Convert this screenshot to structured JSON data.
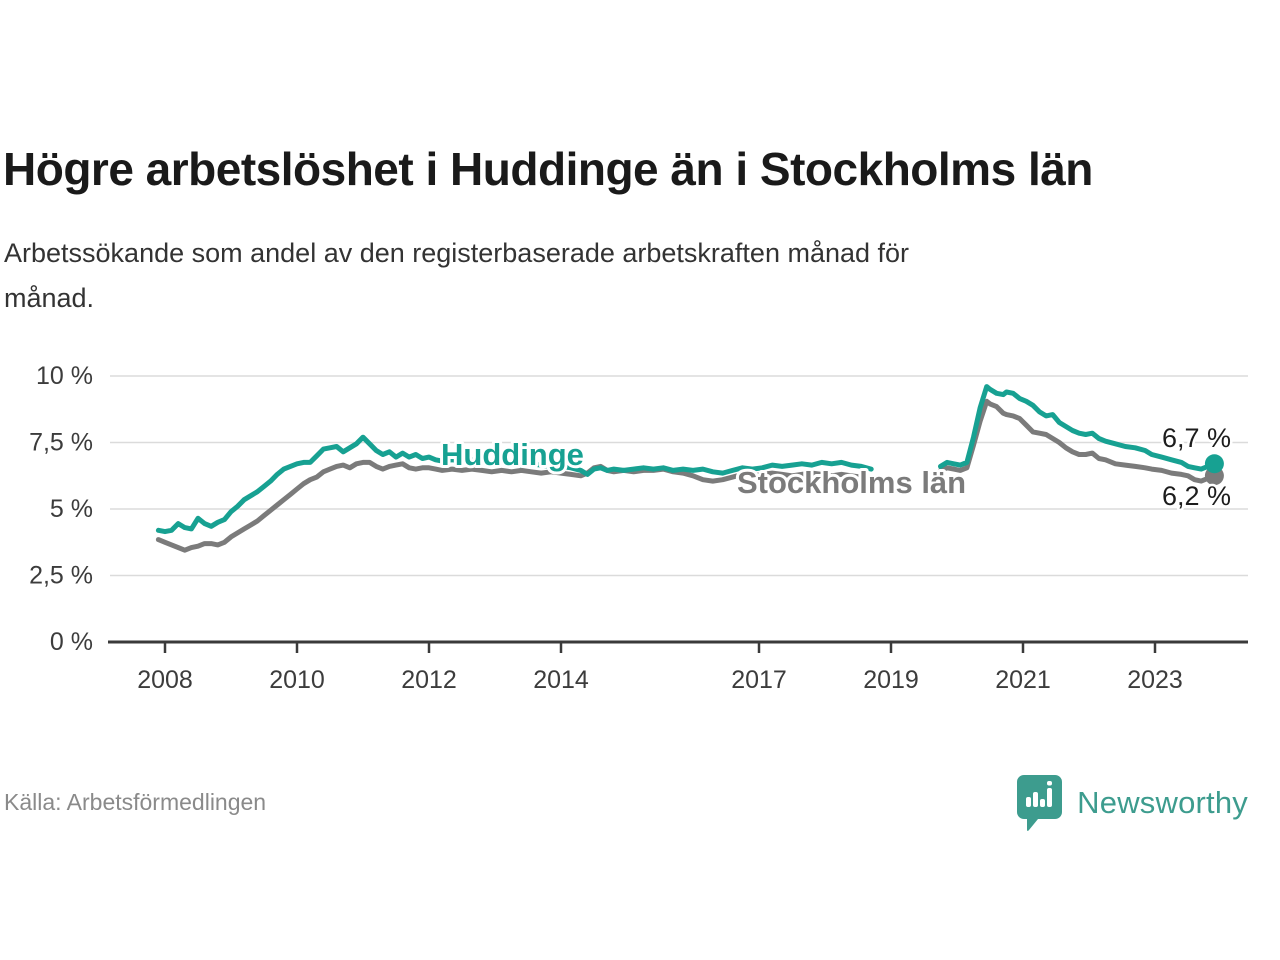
{
  "page": {
    "title": "Högre arbetslöshet i Huddinge än i Stockholms län",
    "subtitle_lines": [
      "Arbetssökande som andel av den registerbaserade arbetskraften månad för",
      "månad."
    ],
    "source": "Källa: Arbetsförmedlingen",
    "brand": "Newsworthy"
  },
  "chart_data": {
    "type": "line",
    "title": "Högre arbetslöshet i Huddinge än i Stockholms län",
    "subtitle": "Arbetssökande som andel av den registerbaserade arbetskraften månad för månad.",
    "unit": "%",
    "xlim": [
      2007.5,
      2024.5
    ],
    "ylim": [
      0,
      10
    ],
    "grid": true,
    "legend_position": "inline-labels",
    "x_ticks": [
      2008,
      2010,
      2012,
      2014,
      2017,
      2019,
      2021,
      2023
    ],
    "x_tick_labels": [
      "2008",
      "2010",
      "2012",
      "2014",
      "2017",
      "2019",
      "2021",
      "2023"
    ],
    "y_ticks": [
      0,
      2.5,
      5,
      7.5,
      10
    ],
    "y_tick_labels": [
      "0 %",
      "2,5 %",
      "5 %",
      "7,5 %",
      "10 %"
    ],
    "data_gap_years": [
      2018.8,
      2019.6
    ],
    "colors": {
      "huddinge": "#17a192",
      "stockholms_lan": "#7b7b7b",
      "grid": "#dbdbdb",
      "axis": "#3a3a3a",
      "tick_text": "#3c3c3c",
      "end_label_text": "#1d1d1d"
    },
    "series": [
      {
        "name": "Stockholms län",
        "color": "#7b7b7b",
        "end_label": "6,2 %",
        "end_value": 6.2,
        "points": [
          [
            2007.9,
            3.85
          ],
          [
            2008.0,
            3.75
          ],
          [
            2008.1,
            3.65
          ],
          [
            2008.2,
            3.55
          ],
          [
            2008.3,
            3.45
          ],
          [
            2008.4,
            3.55
          ],
          [
            2008.5,
            3.6
          ],
          [
            2008.6,
            3.7
          ],
          [
            2008.7,
            3.7
          ],
          [
            2008.8,
            3.65
          ],
          [
            2008.9,
            3.75
          ],
          [
            2009.0,
            3.95
          ],
          [
            2009.1,
            4.1
          ],
          [
            2009.2,
            4.25
          ],
          [
            2009.3,
            4.4
          ],
          [
            2009.4,
            4.55
          ],
          [
            2009.5,
            4.75
          ],
          [
            2009.6,
            4.95
          ],
          [
            2009.7,
            5.15
          ],
          [
            2009.8,
            5.35
          ],
          [
            2009.9,
            5.55
          ],
          [
            2010.0,
            5.75
          ],
          [
            2010.1,
            5.95
          ],
          [
            2010.2,
            6.1
          ],
          [
            2010.3,
            6.2
          ],
          [
            2010.4,
            6.4
          ],
          [
            2010.5,
            6.5
          ],
          [
            2010.6,
            6.6
          ],
          [
            2010.7,
            6.65
          ],
          [
            2010.8,
            6.55
          ],
          [
            2010.9,
            6.7
          ],
          [
            2011.0,
            6.75
          ],
          [
            2011.1,
            6.75
          ],
          [
            2011.2,
            6.6
          ],
          [
            2011.3,
            6.5
          ],
          [
            2011.4,
            6.6
          ],
          [
            2011.5,
            6.65
          ],
          [
            2011.6,
            6.7
          ],
          [
            2011.7,
            6.55
          ],
          [
            2011.8,
            6.5
          ],
          [
            2011.9,
            6.55
          ],
          [
            2012.0,
            6.55
          ],
          [
            2012.1,
            6.5
          ],
          [
            2012.2,
            6.45
          ],
          [
            2012.35,
            6.5
          ],
          [
            2012.5,
            6.45
          ],
          [
            2012.65,
            6.5
          ],
          [
            2012.8,
            6.45
          ],
          [
            2012.95,
            6.4
          ],
          [
            2013.1,
            6.45
          ],
          [
            2013.25,
            6.4
          ],
          [
            2013.4,
            6.45
          ],
          [
            2013.55,
            6.4
          ],
          [
            2013.7,
            6.35
          ],
          [
            2013.85,
            6.4
          ],
          [
            2014.0,
            6.35
          ],
          [
            2014.15,
            6.3
          ],
          [
            2014.3,
            6.25
          ],
          [
            2014.4,
            6.35
          ],
          [
            2014.5,
            6.55
          ],
          [
            2014.6,
            6.6
          ],
          [
            2014.7,
            6.45
          ],
          [
            2014.8,
            6.4
          ],
          [
            2014.95,
            6.45
          ],
          [
            2015.1,
            6.4
          ],
          [
            2015.25,
            6.45
          ],
          [
            2015.4,
            6.45
          ],
          [
            2015.55,
            6.5
          ],
          [
            2015.7,
            6.4
          ],
          [
            2015.85,
            6.35
          ],
          [
            2016.0,
            6.25
          ],
          [
            2016.15,
            6.1
          ],
          [
            2016.3,
            6.05
          ],
          [
            2016.45,
            6.1
          ],
          [
            2016.6,
            6.2
          ],
          [
            2016.75,
            6.3
          ],
          [
            2016.9,
            6.25
          ],
          [
            2017.05,
            6.3
          ],
          [
            2017.2,
            6.35
          ],
          [
            2017.35,
            6.3
          ],
          [
            2017.5,
            6.25
          ],
          [
            2017.65,
            6.3
          ],
          [
            2017.8,
            6.35
          ],
          [
            2017.95,
            6.3
          ],
          [
            2018.1,
            6.25
          ],
          [
            2018.25,
            6.3
          ],
          [
            2018.4,
            6.25
          ],
          [
            2018.55,
            6.2
          ],
          [
            2018.7,
            6.2
          ],
          [
            2018.8,
            null
          ],
          [
            2019.6,
            null
          ],
          [
            2019.75,
            6.45
          ],
          [
            2019.85,
            6.55
          ],
          [
            2019.95,
            6.5
          ],
          [
            2020.05,
            6.45
          ],
          [
            2020.15,
            6.55
          ],
          [
            2020.25,
            7.4
          ],
          [
            2020.35,
            8.3
          ],
          [
            2020.45,
            9.05
          ],
          [
            2020.5,
            8.95
          ],
          [
            2020.6,
            8.85
          ],
          [
            2020.7,
            8.6
          ],
          [
            2020.75,
            8.55
          ],
          [
            2020.85,
            8.5
          ],
          [
            2020.95,
            8.4
          ],
          [
            2021.05,
            8.15
          ],
          [
            2021.15,
            7.9
          ],
          [
            2021.25,
            7.85
          ],
          [
            2021.35,
            7.8
          ],
          [
            2021.45,
            7.65
          ],
          [
            2021.55,
            7.5
          ],
          [
            2021.65,
            7.3
          ],
          [
            2021.75,
            7.15
          ],
          [
            2021.85,
            7.05
          ],
          [
            2021.95,
            7.05
          ],
          [
            2022.05,
            7.1
          ],
          [
            2022.15,
            6.9
          ],
          [
            2022.25,
            6.85
          ],
          [
            2022.4,
            6.7
          ],
          [
            2022.55,
            6.65
          ],
          [
            2022.7,
            6.6
          ],
          [
            2022.85,
            6.55
          ],
          [
            2022.95,
            6.5
          ],
          [
            2023.1,
            6.45
          ],
          [
            2023.25,
            6.35
          ],
          [
            2023.4,
            6.3
          ],
          [
            2023.5,
            6.25
          ],
          [
            2023.6,
            6.1
          ],
          [
            2023.7,
            6.05
          ],
          [
            2023.8,
            6.15
          ],
          [
            2023.9,
            6.25
          ]
        ]
      },
      {
        "name": "Huddinge",
        "color": "#17a192",
        "end_label": "6,7 %",
        "end_value": 6.7,
        "points": [
          [
            2007.9,
            4.2
          ],
          [
            2008.0,
            4.15
          ],
          [
            2008.1,
            4.2
          ],
          [
            2008.2,
            4.45
          ],
          [
            2008.3,
            4.3
          ],
          [
            2008.4,
            4.25
          ],
          [
            2008.5,
            4.65
          ],
          [
            2008.6,
            4.45
          ],
          [
            2008.7,
            4.35
          ],
          [
            2008.8,
            4.5
          ],
          [
            2008.9,
            4.6
          ],
          [
            2009.0,
            4.9
          ],
          [
            2009.1,
            5.1
          ],
          [
            2009.2,
            5.35
          ],
          [
            2009.3,
            5.5
          ],
          [
            2009.4,
            5.65
          ],
          [
            2009.5,
            5.85
          ],
          [
            2009.6,
            6.05
          ],
          [
            2009.7,
            6.3
          ],
          [
            2009.8,
            6.5
          ],
          [
            2009.9,
            6.6
          ],
          [
            2010.0,
            6.7
          ],
          [
            2010.1,
            6.75
          ],
          [
            2010.2,
            6.75
          ],
          [
            2010.3,
            7.0
          ],
          [
            2010.4,
            7.25
          ],
          [
            2010.5,
            7.3
          ],
          [
            2010.6,
            7.35
          ],
          [
            2010.7,
            7.15
          ],
          [
            2010.8,
            7.3
          ],
          [
            2010.9,
            7.45
          ],
          [
            2011.0,
            7.7
          ],
          [
            2011.1,
            7.45
          ],
          [
            2011.2,
            7.2
          ],
          [
            2011.3,
            7.05
          ],
          [
            2011.4,
            7.15
          ],
          [
            2011.5,
            6.95
          ],
          [
            2011.6,
            7.1
          ],
          [
            2011.7,
            6.95
          ],
          [
            2011.8,
            7.05
          ],
          [
            2011.9,
            6.9
          ],
          [
            2012.0,
            6.95
          ],
          [
            2012.1,
            6.85
          ],
          [
            2012.2,
            6.8
          ],
          [
            2012.35,
            6.85
          ],
          [
            2012.5,
            6.8
          ],
          [
            2012.65,
            6.85
          ],
          [
            2012.8,
            6.8
          ],
          [
            2012.95,
            6.75
          ],
          [
            2013.1,
            6.8
          ],
          [
            2013.25,
            6.7
          ],
          [
            2013.4,
            6.65
          ],
          [
            2013.55,
            6.7
          ],
          [
            2013.7,
            6.65
          ],
          [
            2013.85,
            6.6
          ],
          [
            2014.0,
            6.6
          ],
          [
            2014.15,
            6.55
          ],
          [
            2014.3,
            6.45
          ],
          [
            2014.4,
            6.3
          ],
          [
            2014.5,
            6.5
          ],
          [
            2014.6,
            6.55
          ],
          [
            2014.7,
            6.45
          ],
          [
            2014.8,
            6.5
          ],
          [
            2014.95,
            6.45
          ],
          [
            2015.1,
            6.5
          ],
          [
            2015.25,
            6.55
          ],
          [
            2015.4,
            6.5
          ],
          [
            2015.55,
            6.55
          ],
          [
            2015.7,
            6.45
          ],
          [
            2015.85,
            6.5
          ],
          [
            2016.0,
            6.45
          ],
          [
            2016.15,
            6.5
          ],
          [
            2016.3,
            6.4
          ],
          [
            2016.45,
            6.35
          ],
          [
            2016.6,
            6.45
          ],
          [
            2016.75,
            6.55
          ],
          [
            2016.9,
            6.5
          ],
          [
            2017.05,
            6.55
          ],
          [
            2017.2,
            6.65
          ],
          [
            2017.35,
            6.6
          ],
          [
            2017.5,
            6.65
          ],
          [
            2017.65,
            6.7
          ],
          [
            2017.8,
            6.65
          ],
          [
            2017.95,
            6.75
          ],
          [
            2018.1,
            6.7
          ],
          [
            2018.25,
            6.75
          ],
          [
            2018.4,
            6.65
          ],
          [
            2018.55,
            6.6
          ],
          [
            2018.7,
            6.5
          ],
          [
            2018.8,
            null
          ],
          [
            2019.6,
            null
          ],
          [
            2019.75,
            6.6
          ],
          [
            2019.85,
            6.75
          ],
          [
            2019.95,
            6.7
          ],
          [
            2020.05,
            6.65
          ],
          [
            2020.15,
            6.75
          ],
          [
            2020.25,
            7.7
          ],
          [
            2020.35,
            8.8
          ],
          [
            2020.45,
            9.6
          ],
          [
            2020.5,
            9.5
          ],
          [
            2020.6,
            9.35
          ],
          [
            2020.7,
            9.3
          ],
          [
            2020.75,
            9.4
          ],
          [
            2020.85,
            9.35
          ],
          [
            2020.95,
            9.15
          ],
          [
            2021.05,
            9.05
          ],
          [
            2021.15,
            8.9
          ],
          [
            2021.25,
            8.65
          ],
          [
            2021.35,
            8.5
          ],
          [
            2021.45,
            8.55
          ],
          [
            2021.55,
            8.25
          ],
          [
            2021.65,
            8.1
          ],
          [
            2021.75,
            7.95
          ],
          [
            2021.85,
            7.85
          ],
          [
            2021.95,
            7.8
          ],
          [
            2022.05,
            7.85
          ],
          [
            2022.15,
            7.65
          ],
          [
            2022.25,
            7.55
          ],
          [
            2022.4,
            7.45
          ],
          [
            2022.55,
            7.35
          ],
          [
            2022.7,
            7.3
          ],
          [
            2022.85,
            7.2
          ],
          [
            2022.95,
            7.05
          ],
          [
            2023.1,
            6.95
          ],
          [
            2023.25,
            6.85
          ],
          [
            2023.4,
            6.75
          ],
          [
            2023.5,
            6.6
          ],
          [
            2023.6,
            6.55
          ],
          [
            2023.7,
            6.5
          ],
          [
            2023.8,
            6.6
          ],
          [
            2023.9,
            6.7
          ]
        ]
      }
    ]
  }
}
